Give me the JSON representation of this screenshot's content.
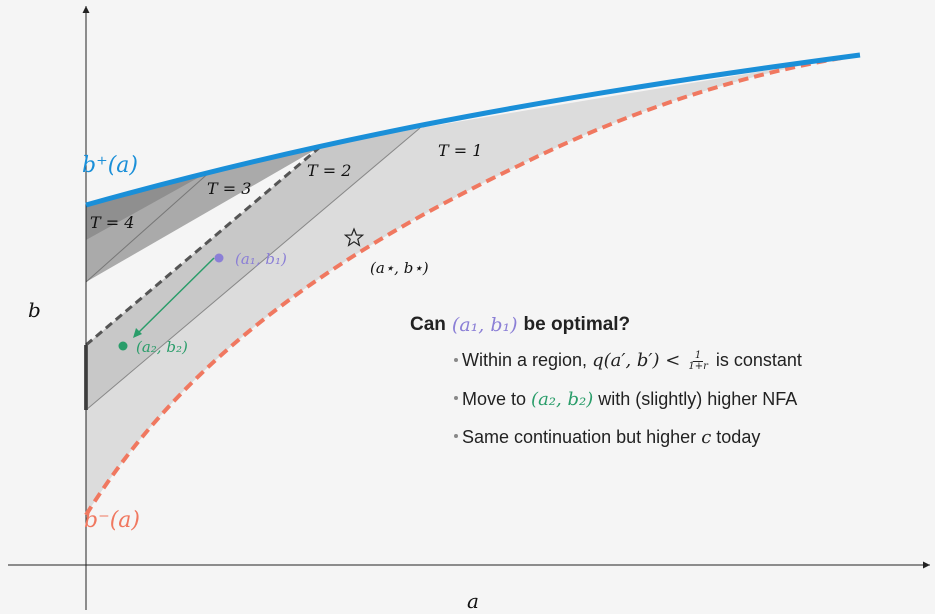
{
  "axes": {
    "xlabel": "a",
    "ylabel": "b"
  },
  "curves": {
    "upper_label": "b⁺(a)",
    "lower_label": "b⁻(a)",
    "upper_color": "#1a8fd8",
    "lower_color": "#f07860"
  },
  "regions": [
    {
      "label": "T = 1"
    },
    {
      "label": "T = 2"
    },
    {
      "label": "T = 3"
    },
    {
      "label": "T = 4"
    }
  ],
  "points": {
    "p1": {
      "label": "(a₁, b₁)",
      "color": "#8b7fd6"
    },
    "p2": {
      "label": "(a₂, b₂)",
      "color": "#2a9d6a"
    },
    "star": {
      "label": "(a⋆, b⋆)"
    }
  },
  "note": {
    "title_prefix": "Can",
    "title_math": "(a₁, b₁)",
    "title_suffix": "be optimal?",
    "bullets": [
      {
        "pre": "Within a region,",
        "math": "q(a′, b′) <",
        "frac_num": "1",
        "frac_den": "1+r",
        "post": "is constant"
      },
      {
        "pre": "Move to",
        "math": "(a₂, b₂)",
        "post": "with (slightly) higher NFA"
      },
      {
        "pre": "Same continuation but higher",
        "math": "c",
        "post": "today"
      }
    ]
  }
}
